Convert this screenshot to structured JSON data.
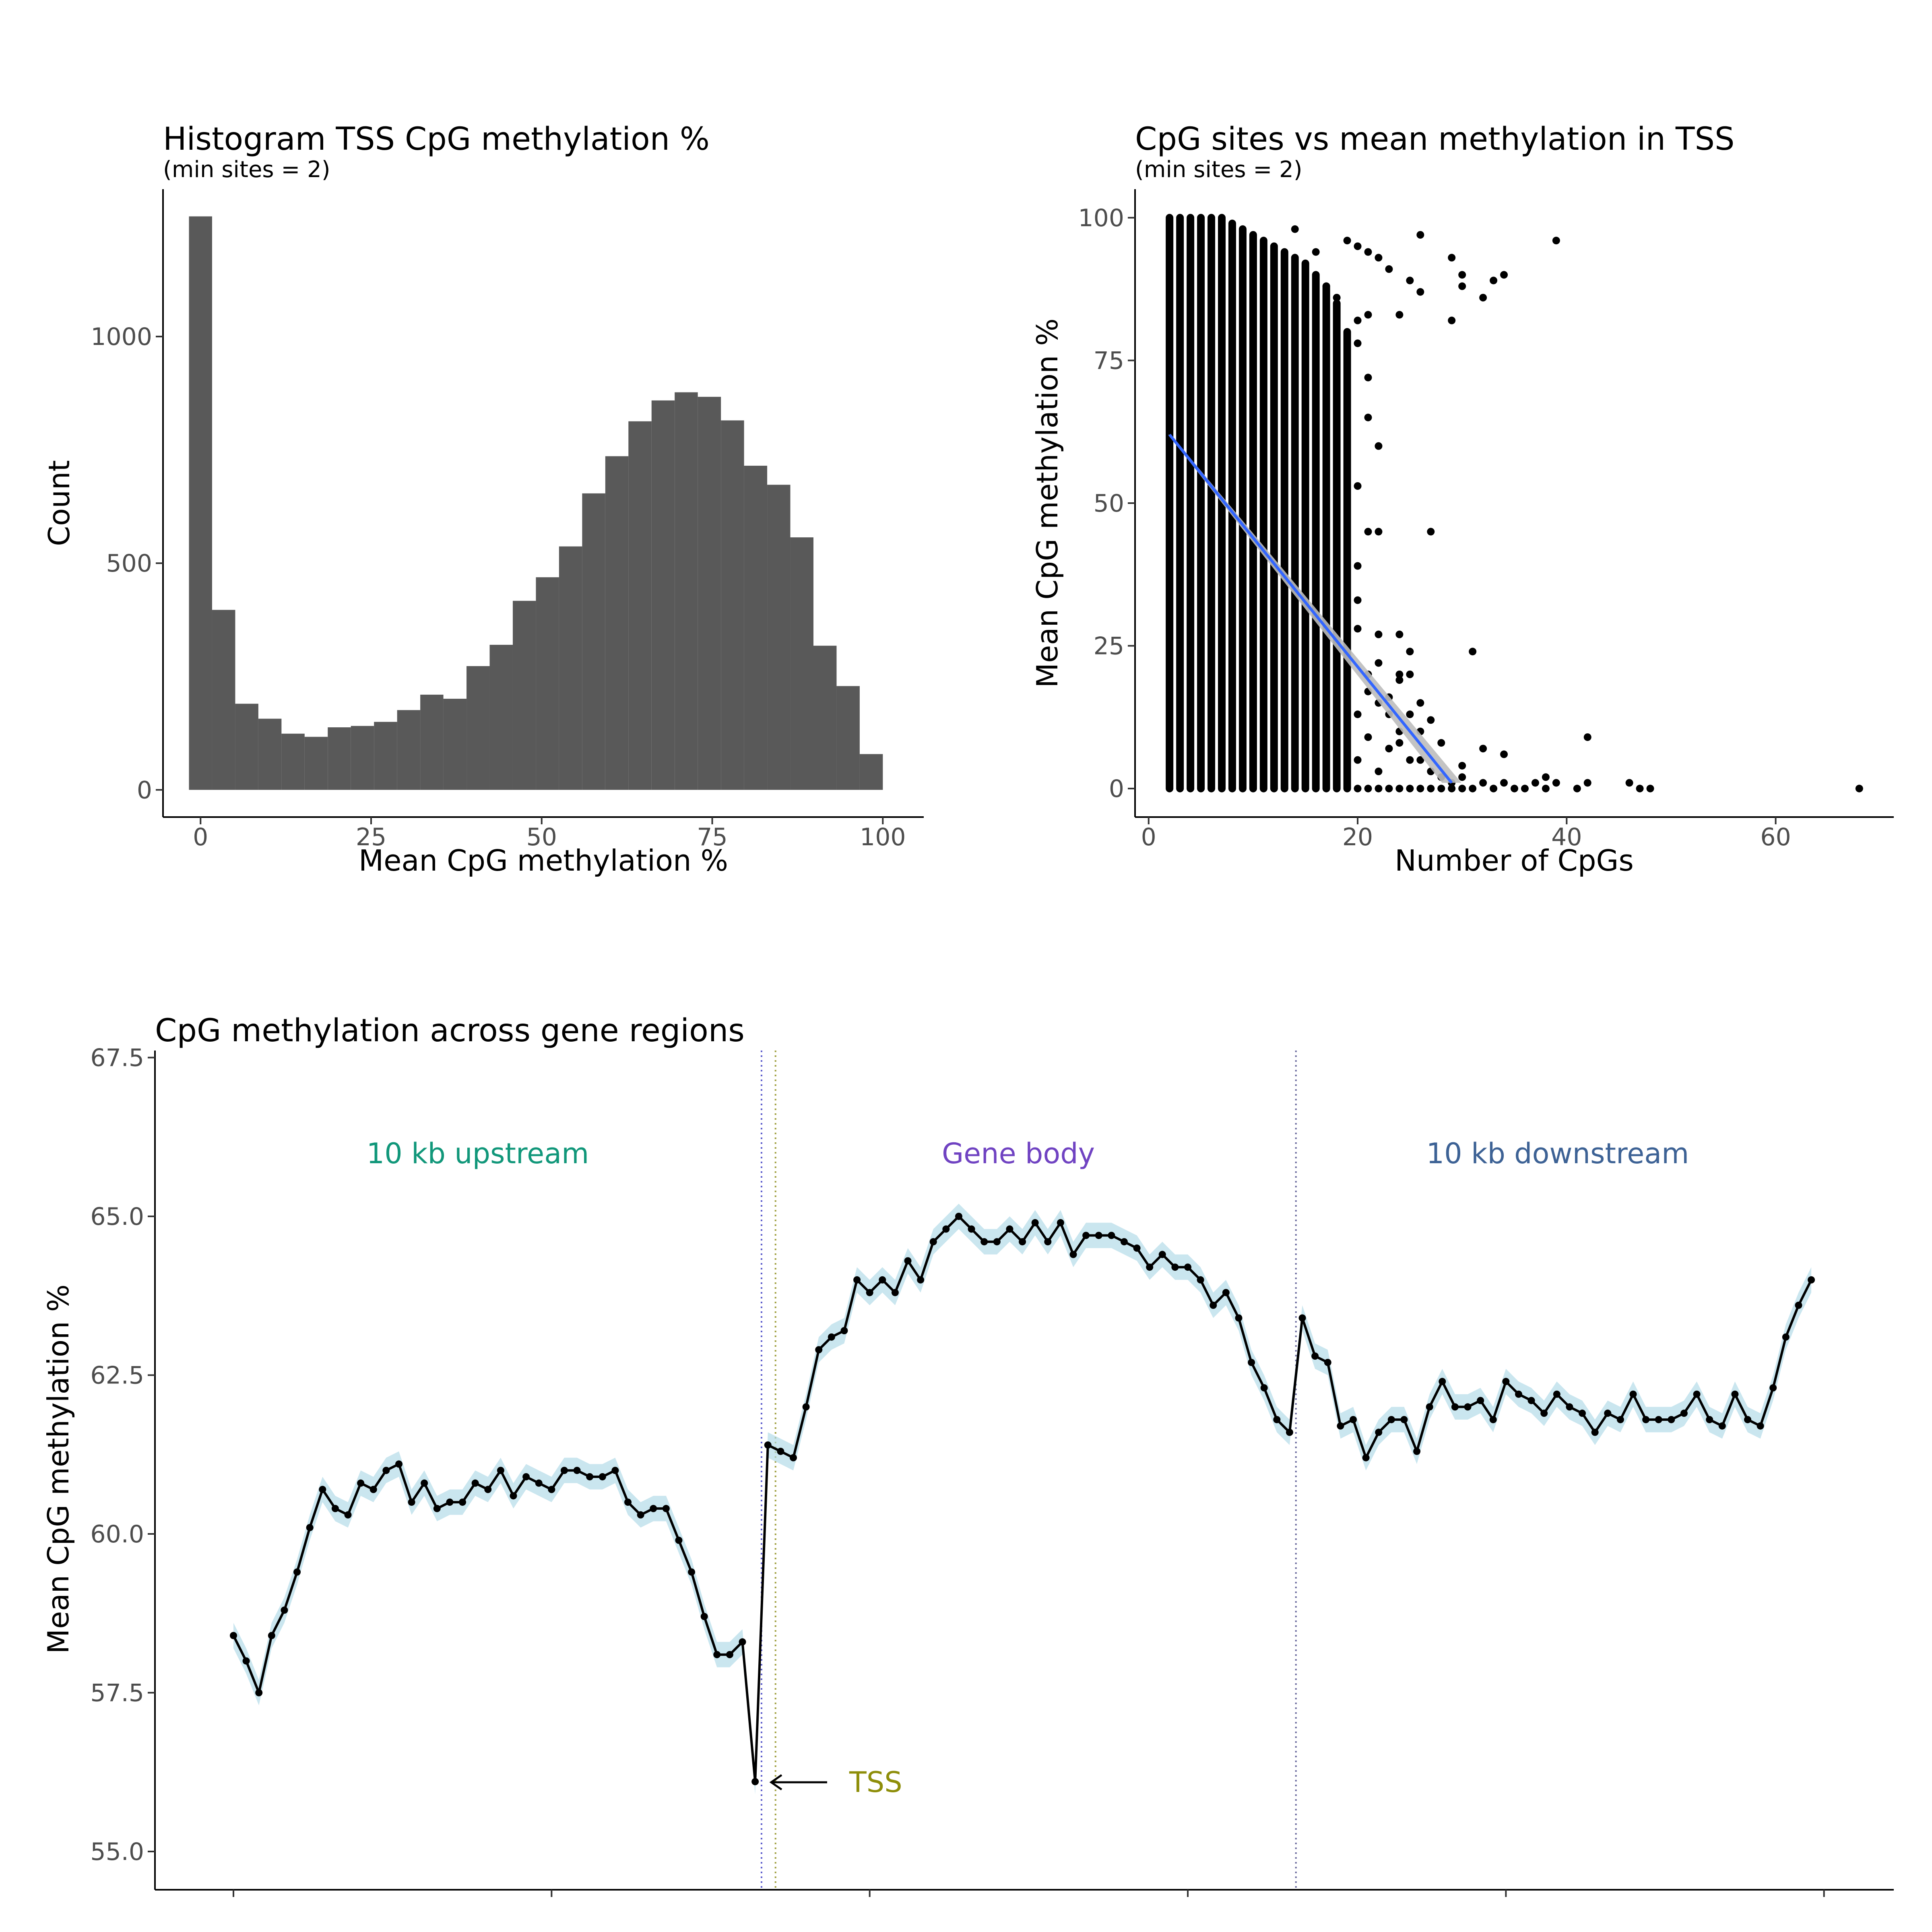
{
  "chart_data": [
    {
      "type": "bar",
      "title": "Histogram TSS CpG methylation %",
      "subtitle": "(min sites = 2)",
      "xlabel": "Mean CpG methylation %",
      "ylabel": "Count",
      "xlim": [
        -5.5,
        106
      ],
      "ylim": [
        -60,
        1325
      ],
      "xticks": [
        0,
        25,
        50,
        75,
        100
      ],
      "yticks": [
        0,
        500,
        1000
      ],
      "bin_width": 3.3898,
      "bin_centers": [
        0.0,
        3.39,
        6.78,
        10.17,
        13.56,
        16.95,
        20.34,
        23.73,
        27.12,
        30.51,
        33.9,
        37.29,
        40.68,
        44.07,
        47.46,
        50.85,
        54.24,
        57.63,
        61.02,
        64.41,
        67.8,
        71.19,
        74.58,
        77.97,
        81.36,
        84.75,
        88.14,
        91.53,
        94.92,
        98.31,
        101.69
      ],
      "counts": [
        1265,
        397,
        190,
        157,
        124,
        117,
        138,
        141,
        150,
        176,
        210,
        201,
        273,
        320,
        417,
        469,
        537,
        654,
        736,
        813,
        859,
        877,
        867,
        815,
        715,
        673,
        557,
        318,
        229,
        79,
        0
      ],
      "bar_color": "#595959",
      "grid": false
    },
    {
      "type": "scatter",
      "title": "CpG sites vs mean methylation in TSS",
      "subtitle": "(min sites = 2)",
      "xlabel": "Number of CpGs",
      "ylabel": "Mean CpG methylation %",
      "xlim": [
        -1.3,
        71.3
      ],
      "ylim": [
        -5,
        105
      ],
      "xticks": [
        0,
        20,
        40,
        60
      ],
      "yticks": [
        0,
        25,
        50,
        75,
        100
      ],
      "column_ranges": [
        [
          2,
          0,
          100
        ],
        [
          3,
          0,
          100
        ],
        [
          4,
          0,
          100
        ],
        [
          5,
          0,
          100
        ],
        [
          6,
          0,
          100
        ],
        [
          7,
          0,
          100
        ],
        [
          8,
          0,
          99
        ],
        [
          9,
          0,
          98
        ],
        [
          10,
          0,
          97
        ],
        [
          11,
          0,
          96
        ],
        [
          12,
          0,
          95
        ],
        [
          13,
          0,
          94
        ],
        [
          14,
          0,
          93
        ],
        [
          15,
          0,
          92
        ],
        [
          16,
          0,
          90
        ],
        [
          17,
          0,
          88
        ],
        [
          18,
          0,
          85
        ],
        [
          19,
          0,
          80
        ]
      ],
      "points": [
        [
          14,
          98
        ],
        [
          16,
          94
        ],
        [
          17,
          88
        ],
        [
          18,
          86
        ],
        [
          19,
          96
        ],
        [
          20,
          95
        ],
        [
          21,
          94
        ],
        [
          22,
          93
        ],
        [
          23,
          91
        ],
        [
          25,
          89
        ],
        [
          26,
          97
        ],
        [
          26,
          87
        ],
        [
          29,
          93
        ],
        [
          29,
          82
        ],
        [
          30,
          90
        ],
        [
          30,
          88
        ],
        [
          32,
          86
        ],
        [
          33,
          89
        ],
        [
          34,
          90
        ],
        [
          39,
          96
        ],
        [
          20,
          82
        ],
        [
          21,
          83
        ],
        [
          24,
          83
        ],
        [
          20,
          78
        ],
        [
          21,
          72
        ],
        [
          21,
          65
        ],
        [
          22,
          60
        ],
        [
          20,
          53
        ],
        [
          21,
          45
        ],
        [
          22,
          45
        ],
        [
          27,
          45
        ],
        [
          20,
          39
        ],
        [
          20,
          28
        ],
        [
          22,
          27
        ],
        [
          24,
          27
        ],
        [
          25,
          24
        ],
        [
          31,
          24
        ],
        [
          24,
          20
        ],
        [
          25,
          20
        ],
        [
          24,
          19
        ],
        [
          21,
          17
        ],
        [
          22,
          15
        ],
        [
          25,
          13
        ],
        [
          26,
          15
        ],
        [
          23,
          13
        ],
        [
          24,
          10
        ],
        [
          24,
          8
        ],
        [
          23,
          7
        ],
        [
          25,
          5
        ],
        [
          26,
          5
        ],
        [
          26,
          10
        ],
        [
          27,
          3
        ],
        [
          28,
          2
        ],
        [
          28,
          8
        ],
        [
          27,
          12
        ],
        [
          29,
          1
        ],
        [
          30,
          2
        ],
        [
          30,
          4
        ],
        [
          31,
          0
        ],
        [
          32,
          1
        ],
        [
          32,
          7
        ],
        [
          33,
          0
        ],
        [
          34,
          1
        ],
        [
          34,
          6
        ],
        [
          35,
          0
        ],
        [
          36,
          0
        ],
        [
          37,
          1
        ],
        [
          38,
          0
        ],
        [
          38,
          2
        ],
        [
          39,
          1
        ],
        [
          41,
          0
        ],
        [
          42,
          1
        ],
        [
          42,
          9
        ],
        [
          46,
          1
        ],
        [
          47,
          0
        ],
        [
          48,
          0
        ],
        [
          68,
          0
        ],
        [
          20,
          5
        ],
        [
          21,
          9
        ],
        [
          22,
          3
        ],
        [
          20,
          0
        ],
        [
          21,
          0
        ],
        [
          22,
          0
        ],
        [
          23,
          0
        ],
        [
          24,
          0
        ],
        [
          25,
          0
        ],
        [
          26,
          0
        ],
        [
          27,
          0
        ],
        [
          28,
          0
        ],
        [
          29,
          0
        ],
        [
          30,
          0
        ],
        [
          20,
          13
        ],
        [
          21,
          20
        ],
        [
          22,
          22
        ],
        [
          20,
          33
        ],
        [
          23,
          16
        ]
      ],
      "trend_line": {
        "x": [
          2,
          29
        ],
        "y": [
          62,
          1
        ],
        "color": "#3366ff",
        "se_band_color": "#bdbdbd"
      },
      "point_color": "#000000",
      "grid": false
    },
    {
      "type": "line",
      "title": "CpG methylation across gene regions",
      "ylabel": "Mean CpG methylation %",
      "ylim": [
        54.6,
        67.7
      ],
      "yticks": [
        "55.0",
        "57.5",
        "60.0",
        "62.5",
        "65.0",
        "67.5"
      ],
      "x_index_range": [
        0,
        125
      ],
      "region_labels": [
        {
          "text": "10 kb upstream",
          "color": "#11977a"
        },
        {
          "text": "Gene body",
          "color": "#7043c2"
        },
        {
          "text": "10 kb downstream",
          "color": "#3d6295"
        }
      ],
      "annotation": {
        "text": "TSS",
        "color": "#8e8e0a"
      },
      "boundaries": {
        "upstream_end": 41.5,
        "tss": 42.6,
        "body_end": 83.5
      },
      "y": [
        58.4,
        58.0,
        57.5,
        58.4,
        58.8,
        59.4,
        60.1,
        60.7,
        60.4,
        60.3,
        60.8,
        60.7,
        61.0,
        61.1,
        60.5,
        60.8,
        60.4,
        60.5,
        60.5,
        60.8,
        60.7,
        61.0,
        60.6,
        60.9,
        60.8,
        60.7,
        61.0,
        61.0,
        60.9,
        60.9,
        61.0,
        60.5,
        60.3,
        60.4,
        60.4,
        59.9,
        59.4,
        58.7,
        58.1,
        58.1,
        58.3,
        56.1,
        61.4,
        61.3,
        61.2,
        62.0,
        62.9,
        63.1,
        63.2,
        64.0,
        63.8,
        64.0,
        63.8,
        64.3,
        64.0,
        64.6,
        64.8,
        65.0,
        64.8,
        64.6,
        64.6,
        64.8,
        64.6,
        64.9,
        64.6,
        64.9,
        64.4,
        64.7,
        64.7,
        64.7,
        64.6,
        64.5,
        64.2,
        64.4,
        64.2,
        64.2,
        64.0,
        63.6,
        63.8,
        63.4,
        62.7,
        62.3,
        61.8,
        61.6,
        63.4,
        62.8,
        62.7,
        61.7,
        61.8,
        61.2,
        61.6,
        61.8,
        61.8,
        61.3,
        62.0,
        62.4,
        62.0,
        62.0,
        62.1,
        61.8,
        62.4,
        62.2,
        62.1,
        61.9,
        62.2,
        62.0,
        61.9,
        61.6,
        61.9,
        61.8,
        62.2,
        61.8,
        61.8,
        61.8,
        61.9,
        62.2,
        61.8,
        61.7,
        62.2,
        61.8,
        61.7,
        62.3,
        63.1,
        63.6,
        64.0
      ],
      "ci_halfwidth": 0.2,
      "line_color": "#000000",
      "ribbon_color": "#add8e6",
      "grid": false
    }
  ]
}
